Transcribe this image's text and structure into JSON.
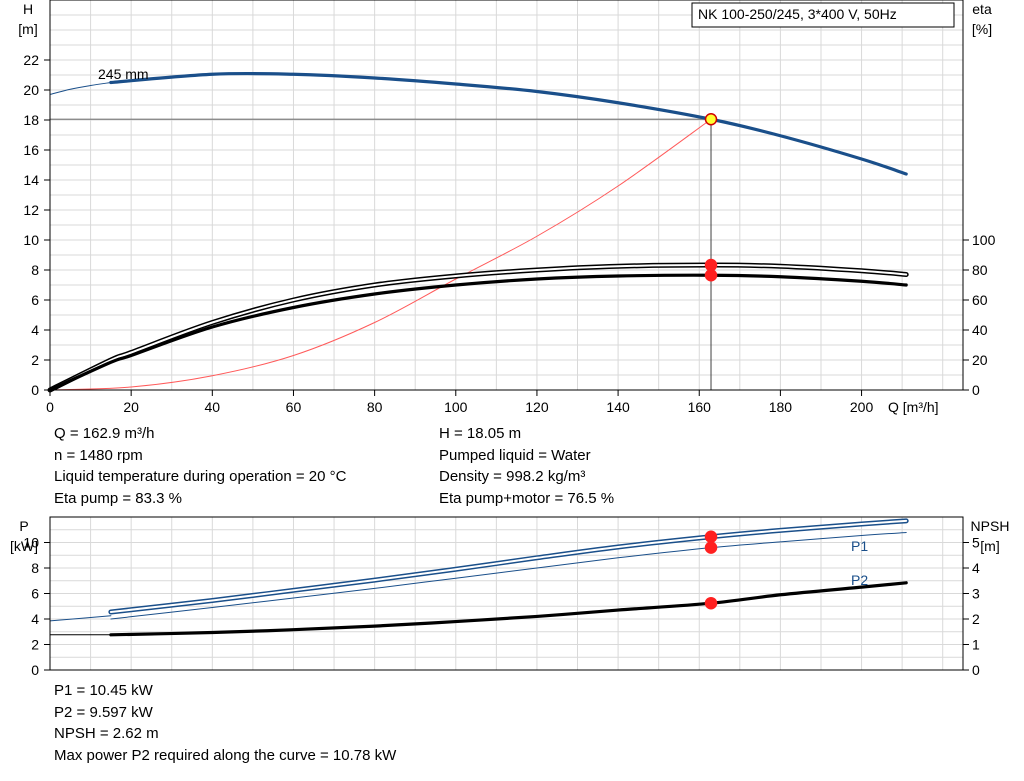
{
  "chart_data": [
    {
      "type": "line",
      "title": "NK 100-250/245, 3*400 V, 50Hz",
      "xlabel": "Q [m³/h]",
      "ylabel": [
        "H",
        "[m]"
      ],
      "ylabel_right": [
        "eta",
        "[%]"
      ],
      "xlim": [
        0,
        225
      ],
      "ylim": [
        0,
        26
      ],
      "ylim_right": [
        0,
        260
      ],
      "x_ticks": [
        0,
        20,
        40,
        60,
        80,
        100,
        120,
        140,
        160,
        180,
        200
      ],
      "y_ticks": [
        0,
        2,
        4,
        6,
        8,
        10,
        12,
        14,
        16,
        18,
        20,
        22
      ],
      "y_ticks_right": [
        0,
        20,
        40,
        60,
        80,
        100
      ],
      "grid": true,
      "annotations": [
        "245 mm"
      ],
      "series": [
        {
          "axis": "left",
          "color": "#1a4f8a",
          "style": "thick",
          "x": [
            15,
            40,
            60,
            80,
            100,
            120,
            140,
            162.9,
            180,
            200,
            211
          ],
          "y": [
            20.5,
            21.05,
            21.05,
            20.8,
            20.4,
            19.9,
            19.15,
            18.05,
            16.95,
            15.4,
            14.4
          ]
        },
        {
          "axis": "left",
          "color": "#1a4f8a",
          "style": "thin",
          "x": [
            0,
            5,
            10,
            15
          ],
          "y": [
            19.7,
            20.05,
            20.3,
            20.5
          ]
        },
        {
          "axis": "left",
          "color": "#ff5a5a",
          "style": "thin",
          "x": [
            0,
            20,
            40,
            60,
            80,
            100,
            120,
            140,
            162.9
          ],
          "y": [
            0,
            0.2,
            0.95,
            2.3,
            4.5,
            7.4,
            10.25,
            13.6,
            18.05
          ]
        },
        {
          "axis": "right",
          "color": "#000000",
          "style": "outline",
          "x": [
            0,
            15,
            20,
            40,
            60,
            80,
            100,
            120,
            140,
            162.9,
            180,
            200,
            211
          ],
          "y": [
            0,
            20,
            25,
            45,
            60,
            70,
            76,
            80,
            82.5,
            83.3,
            82.5,
            79.5,
            77
          ]
        },
        {
          "axis": "right",
          "color": "#000000",
          "style": "thick",
          "x": [
            0,
            15,
            20,
            40,
            60,
            80,
            100,
            120,
            140,
            162.9,
            180,
            200,
            211
          ],
          "y": [
            0,
            18.5,
            23,
            42,
            55,
            64,
            70,
            74,
            76,
            76.5,
            75.5,
            72.5,
            70
          ]
        }
      ],
      "markers": [
        {
          "x": 162.9,
          "y": 18.05,
          "axis": "left",
          "color": "#ffff33"
        },
        {
          "x": 162.9,
          "y": 83.3,
          "axis": "right",
          "color": "#ff2020"
        },
        {
          "x": 162.9,
          "y": 76.5,
          "axis": "right",
          "color": "#ff2020"
        }
      ],
      "duty_point": {
        "x": 162.9,
        "y": 18.05
      }
    },
    {
      "type": "line",
      "xlim": [
        0,
        225
      ],
      "ylabel": [
        "P",
        "[kW]"
      ],
      "ylabel_right": [
        "NPSH",
        "[m]"
      ],
      "ylim": [
        0,
        12
      ],
      "ylim_right": [
        0,
        6
      ],
      "y_ticks": [
        0,
        2,
        4,
        6,
        8,
        10
      ],
      "y_ticks_right": [
        0,
        1,
        2,
        3,
        4,
        5
      ],
      "grid": true,
      "series": [
        {
          "name": "P1",
          "axis": "left",
          "color": "#1a4f8a",
          "style": "outline",
          "x": [
            15,
            40,
            60,
            80,
            100,
            120,
            140,
            162.9,
            180,
            200,
            211
          ],
          "y": [
            4.55,
            5.45,
            6.25,
            7.05,
            7.9,
            8.8,
            9.65,
            10.45,
            10.95,
            11.45,
            11.7
          ]
        },
        {
          "name": "P2",
          "axis": "left",
          "color": "#1a4f8a",
          "style": "thin",
          "x": [
            15,
            40,
            60,
            80,
            100,
            120,
            140,
            162.9,
            180,
            200,
            211
          ],
          "y": [
            4.0,
            4.9,
            5.65,
            6.4,
            7.2,
            8.0,
            8.8,
            9.597,
            10.05,
            10.55,
            10.78
          ]
        },
        {
          "axis": "left",
          "color": "#1a4f8a",
          "style": "thin",
          "x": [
            0,
            15
          ],
          "y": [
            3.85,
            4.25
          ]
        },
        {
          "axis": "right",
          "color": "#000000",
          "style": "thick",
          "x": [
            15,
            40,
            60,
            80,
            100,
            120,
            140,
            162.9,
            180,
            200,
            211
          ],
          "y": [
            1.38,
            1.47,
            1.58,
            1.72,
            1.9,
            2.1,
            2.35,
            2.62,
            2.95,
            3.25,
            3.42
          ]
        },
        {
          "axis": "right",
          "color": "#000000",
          "style": "thin",
          "x": [
            0,
            15
          ],
          "y": [
            1.38,
            1.38
          ]
        }
      ],
      "markers": [
        {
          "x": 162.9,
          "y": 10.45,
          "axis": "left",
          "color": "#ff2020"
        },
        {
          "x": 162.9,
          "y": 9.597,
          "axis": "left",
          "color": "#ff2020"
        },
        {
          "x": 162.9,
          "y": 2.62,
          "axis": "right",
          "color": "#ff2020"
        }
      ]
    }
  ],
  "info_top_left": [
    "Q = 162.9 m³/h",
    "n = 1480 rpm",
    "Liquid temperature during operation = 20 °C",
    "Eta pump = 83.3 %"
  ],
  "info_top_right": [
    "H = 18.05 m",
    "Pumped liquid = Water",
    "Density = 998.2 kg/m³",
    "Eta pump+motor = 76.5 %"
  ],
  "info_bottom": [
    "P1 = 10.45 kW",
    "P2 = 9.597 kW",
    "NPSH = 2.62 m",
    "Max power P2 required along the curve = 10.78 kW"
  ]
}
